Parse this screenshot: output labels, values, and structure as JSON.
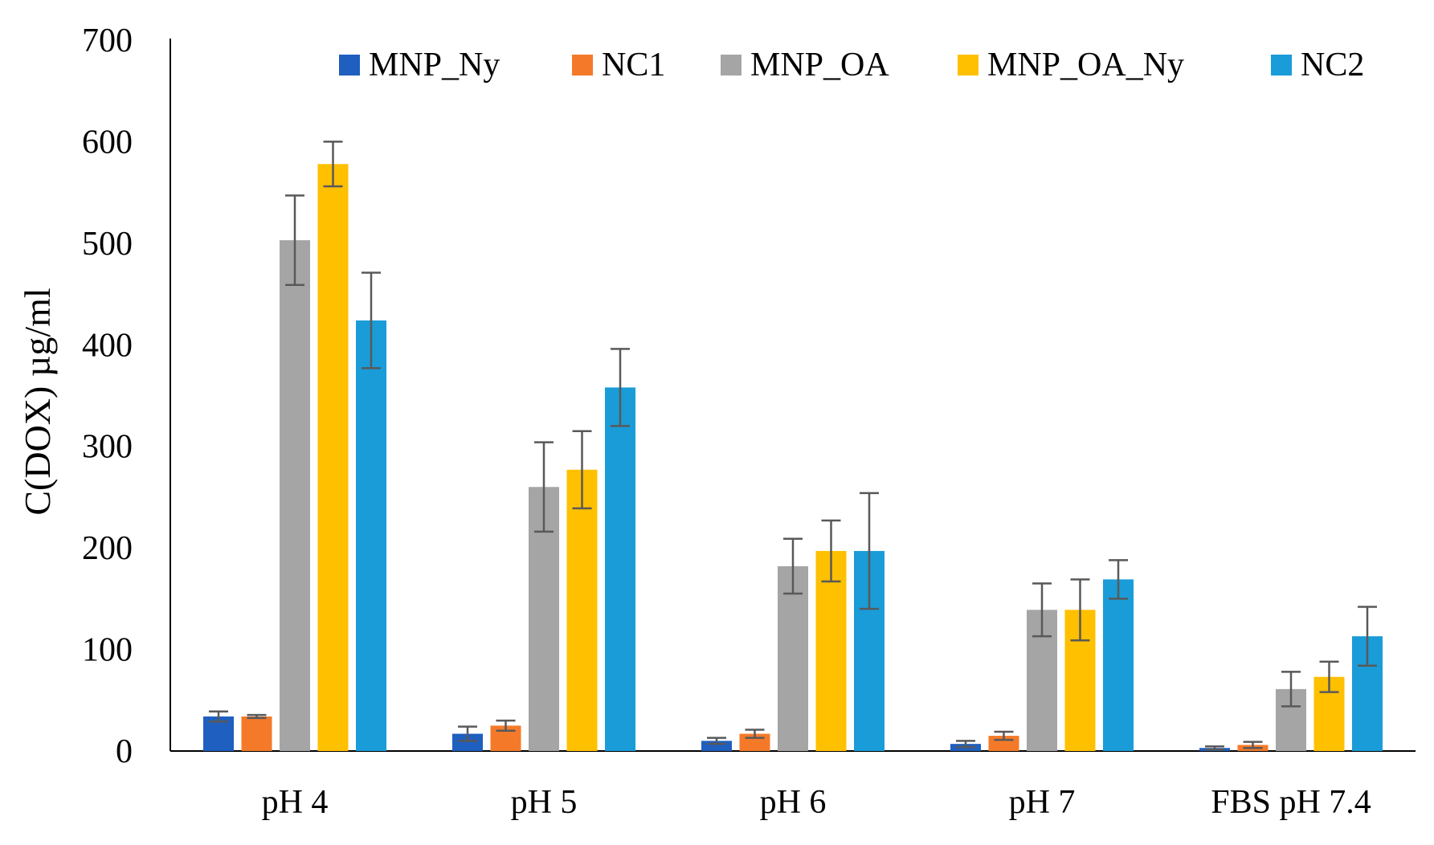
{
  "chart_data": {
    "type": "bar",
    "title": "",
    "xlabel": "",
    "ylabel": "C(DOX) µg/ml",
    "ylim": [
      0,
      700
    ],
    "yticks": [
      0,
      100,
      200,
      300,
      400,
      500,
      600,
      700
    ],
    "grid": false,
    "legend_position": "top-right",
    "categories": [
      "pH 4",
      "pH 5",
      "pH 6",
      "pH 7",
      "FBS pH 7.4"
    ],
    "series": [
      {
        "name": "MNP_Ny",
        "color": "#1f5fbf",
        "values": [
          34,
          17,
          10,
          7,
          3
        ],
        "errors": [
          5,
          7,
          3,
          3,
          1.5
        ]
      },
      {
        "name": "NC1",
        "color": "#f47a2a",
        "values": [
          34,
          25,
          17,
          15,
          6
        ],
        "errors": [
          1.5,
          5,
          4,
          4,
          3
        ]
      },
      {
        "name": "MNP_OA",
        "color": "#a5a5a5",
        "values": [
          503,
          260,
          182,
          139,
          61
        ],
        "errors": [
          44,
          44,
          27,
          26,
          17
        ]
      },
      {
        "name": "MNP_OA_Ny",
        "color": "#ffc000",
        "values": [
          578,
          277,
          197,
          139,
          73
        ],
        "errors": [
          22,
          38,
          30,
          30,
          15
        ]
      },
      {
        "name": "NC2",
        "color": "#1a9cd8",
        "values": [
          424,
          358,
          197,
          169,
          113
        ],
        "errors": [
          47,
          38,
          57,
          19,
          29
        ]
      }
    ]
  }
}
